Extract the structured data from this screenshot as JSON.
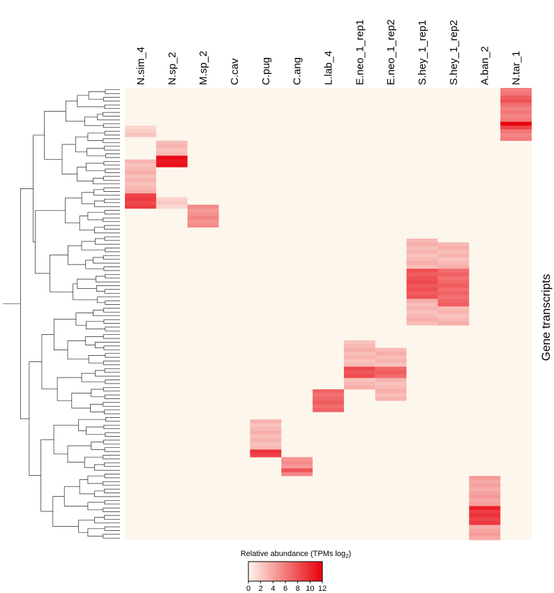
{
  "chart_data": {
    "type": "heatmap",
    "columns": [
      "N.sim_4",
      "N.sp_2",
      "M.sp_2",
      "C.cav",
      "C.pug",
      "C.ang",
      "L.lab_4",
      "E.neo_1_rep1",
      "E.neo_1_rep2",
      "S.hey_1_rep1",
      "S.hey_1_rep2",
      "A.ban_2",
      "N.tar_1"
    ],
    "row_axis_label": "Gene transcripts",
    "row_count": 120,
    "legend": {
      "title_main": "Relative abundance (TPMs log",
      "title_sub": "2",
      "title_end": ")",
      "ticks": [
        "0",
        "2",
        "4",
        "6",
        "8",
        "10",
        "12"
      ],
      "range": [
        0,
        12
      ]
    },
    "colors": {
      "low": "#fdf6ec",
      "high": "#e8000b"
    },
    "blocks": [
      {
        "col": 12,
        "rows": [
          0,
          13
        ],
        "level": 6
      },
      {
        "col": 12,
        "rows": [
          9,
          10
        ],
        "level": 9
      },
      {
        "col": 12,
        "rows": [
          2,
          3
        ],
        "level": 8
      },
      {
        "col": 12,
        "rows": [
          9,
          9
        ],
        "level": 12
      },
      {
        "col": 0,
        "rows": [
          10,
          12
        ],
        "level": 2
      },
      {
        "col": 0,
        "rows": [
          19,
          27
        ],
        "level": 3
      },
      {
        "col": 0,
        "rows": [
          28,
          31
        ],
        "level": 9
      },
      {
        "col": 1,
        "rows": [
          14,
          18
        ],
        "level": 3
      },
      {
        "col": 1,
        "rows": [
          18,
          20
        ],
        "level": 11
      },
      {
        "col": 1,
        "rows": [
          29,
          31
        ],
        "level": 2
      },
      {
        "col": 2,
        "rows": [
          31,
          36
        ],
        "level": 5
      },
      {
        "col": 9,
        "rows": [
          40,
          62
        ],
        "level": 3
      },
      {
        "col": 9,
        "rows": [
          48,
          55
        ],
        "level": 8
      },
      {
        "col": 10,
        "rows": [
          41,
          62
        ],
        "level": 3
      },
      {
        "col": 10,
        "rows": [
          48,
          57
        ],
        "level": 7
      },
      {
        "col": 7,
        "rows": [
          67,
          79
        ],
        "level": 3
      },
      {
        "col": 7,
        "rows": [
          74,
          76
        ],
        "level": 8
      },
      {
        "col": 8,
        "rows": [
          69,
          82
        ],
        "level": 3
      },
      {
        "col": 8,
        "rows": [
          74,
          76
        ],
        "level": 7
      },
      {
        "col": 6,
        "rows": [
          80,
          85
        ],
        "level": 7
      },
      {
        "col": 4,
        "rows": [
          88,
          97
        ],
        "level": 3
      },
      {
        "col": 4,
        "rows": [
          96,
          97
        ],
        "level": 9
      },
      {
        "col": 5,
        "rows": [
          98,
          102
        ],
        "level": 5
      },
      {
        "col": 5,
        "rows": [
          101,
          101
        ],
        "level": 8
      },
      {
        "col": 11,
        "rows": [
          103,
          119
        ],
        "level": 4
      },
      {
        "col": 11,
        "rows": [
          111,
          115
        ],
        "level": 9
      },
      {
        "col": 11,
        "rows": [
          111,
          111
        ],
        "level": 11
      }
    ]
  }
}
